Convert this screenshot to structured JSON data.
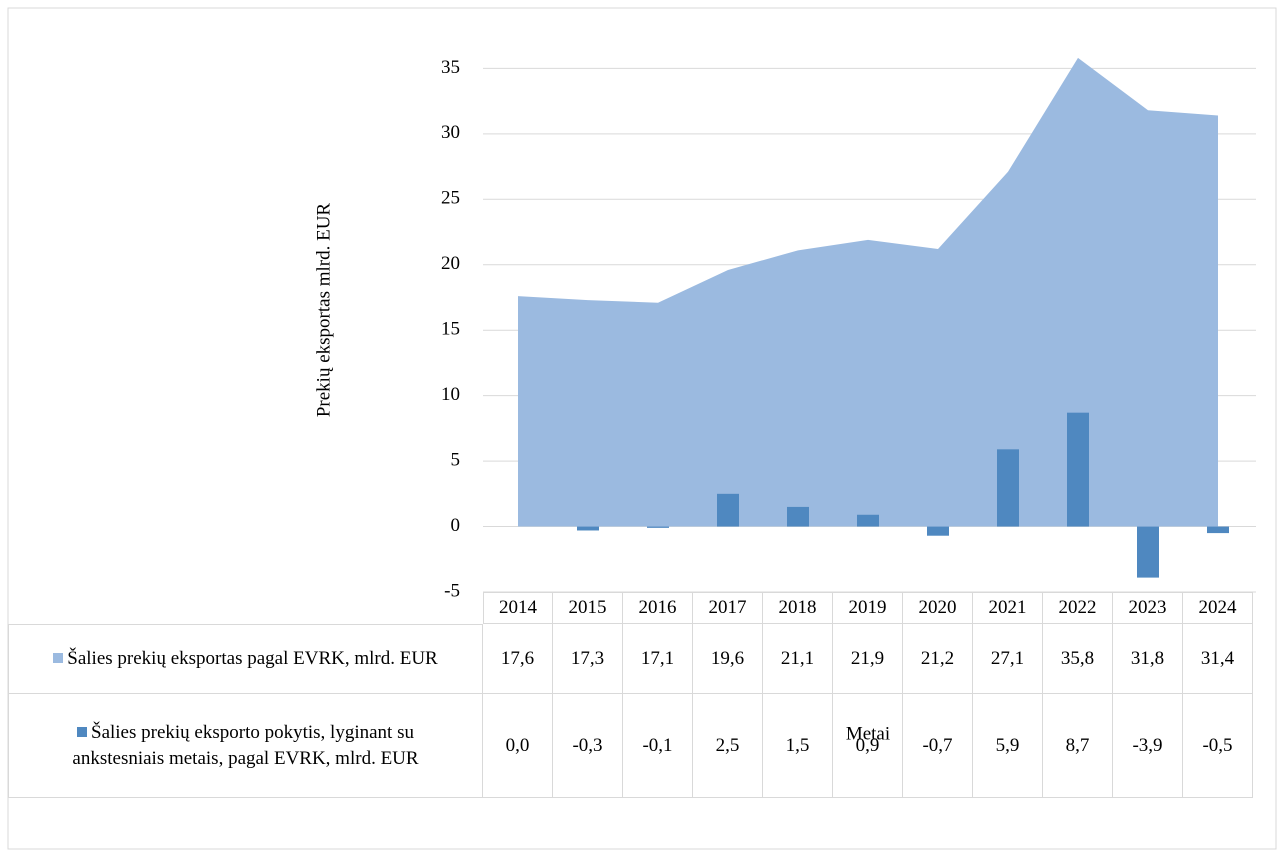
{
  "chart_data": {
    "type": "area_bar_table",
    "y_axis_label": "Prekių eksportas mlrd. EUR",
    "x_axis_label": "Metai",
    "categories": [
      "2014",
      "2015",
      "2016",
      "2017",
      "2018",
      "2019",
      "2020",
      "2021",
      "2022",
      "2023",
      "2024"
    ],
    "series": [
      {
        "name": "Šalies prekių eksportas pagal EVRK, mlrd. EUR",
        "type": "area",
        "color": "#9bbae0",
        "values": [
          17.6,
          17.3,
          17.1,
          19.6,
          21.1,
          21.9,
          21.2,
          27.1,
          35.8,
          31.8,
          31.4
        ],
        "value_labels": [
          "17,6",
          "17,3",
          "17,1",
          "19,6",
          "21,1",
          "21,9",
          "21,2",
          "27,1",
          "35,8",
          "31,8",
          "31,4"
        ]
      },
      {
        "name": "Šalies prekių eksporto pokytis, lyginant su ankstesniais metais, pagal EVRK, mlrd. EUR",
        "type": "bar",
        "color": "#4f88c0",
        "values": [
          0.0,
          -0.3,
          -0.1,
          2.5,
          1.5,
          0.9,
          -0.7,
          5.9,
          8.7,
          -3.9,
          -0.5
        ],
        "value_labels": [
          "0,0",
          "-0,3",
          "-0,1",
          "2,5",
          "1,5",
          "0,9",
          "-0,7",
          "5,9",
          "8,7",
          "-3,9",
          "-0,5"
        ]
      }
    ],
    "ylim": [
      -5,
      36
    ],
    "yticks": [
      -5,
      0,
      5,
      10,
      15,
      20,
      25,
      30,
      35
    ],
    "grid": true
  }
}
